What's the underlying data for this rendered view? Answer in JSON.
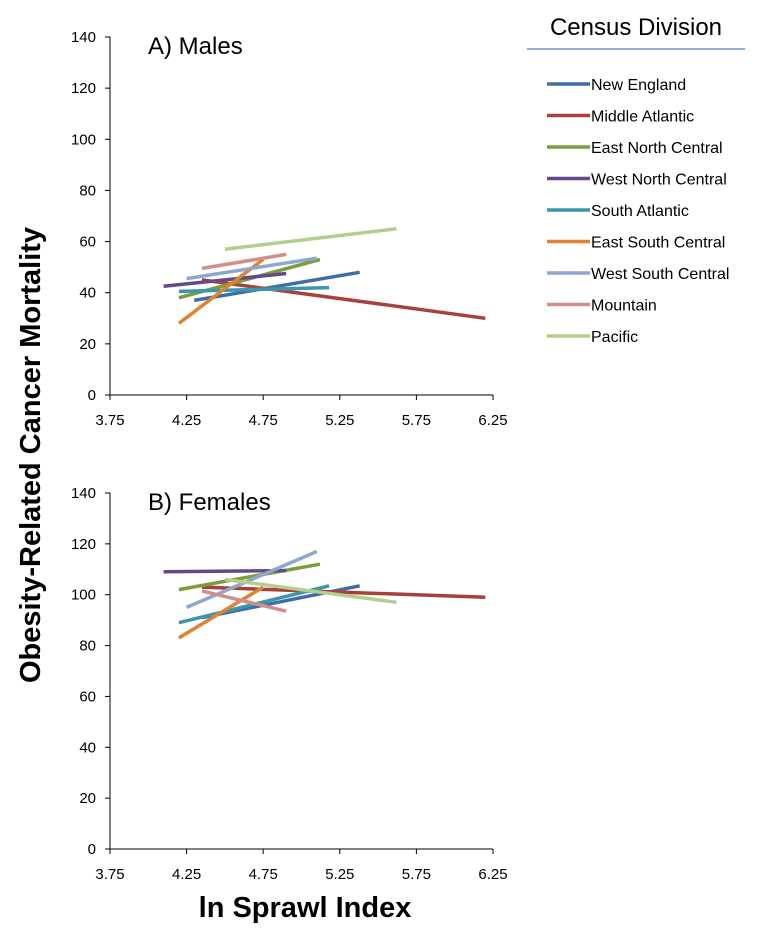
{
  "colors": {
    "New England": "#3f6ea4",
    "Middle Atlantic": "#a9403c",
    "East North Central": "#7a9e3d",
    "West North Central": "#644a8a",
    "South Atlantic": "#3a97ad",
    "East South Central": "#e0822f",
    "West South Central": "#8ea7d0",
    "Mountain": "#d38d8a",
    "Pacific": "#b3cf8c"
  },
  "chart_data": [
    {
      "type": "line",
      "title": "A) Males",
      "xlabel": "",
      "ylabel": "",
      "xlim": [
        3.75,
        6.25
      ],
      "ylim": [
        0,
        140
      ],
      "x_ticks": [
        "3.75",
        "4.25",
        "4.75",
        "5.25",
        "5.75",
        "6.25"
      ],
      "y_ticks": [
        "0",
        "20",
        "40",
        "60",
        "80",
        "100",
        "120",
        "140"
      ],
      "grid": false,
      "series": [
        {
          "name": "New England",
          "x": [
            4.3,
            5.38
          ],
          "values": [
            37,
            48
          ]
        },
        {
          "name": "Middle Atlantic",
          "x": [
            4.35,
            6.2
          ],
          "values": [
            45,
            30
          ]
        },
        {
          "name": "East North Central",
          "x": [
            4.2,
            5.12
          ],
          "values": [
            38,
            53
          ]
        },
        {
          "name": "West North Central",
          "x": [
            4.1,
            4.9
          ],
          "values": [
            42.5,
            47.5
          ]
        },
        {
          "name": "South Atlantic",
          "x": [
            4.2,
            5.18
          ],
          "values": [
            40.5,
            42
          ]
        },
        {
          "name": "East South Central",
          "x": [
            4.2,
            4.75
          ],
          "values": [
            28,
            53
          ]
        },
        {
          "name": "West South Central",
          "x": [
            4.25,
            5.1
          ],
          "values": [
            45.5,
            53.5
          ]
        },
        {
          "name": "Mountain",
          "x": [
            4.35,
            4.9
          ],
          "values": [
            49.5,
            55
          ]
        },
        {
          "name": "Pacific",
          "x": [
            4.5,
            5.62
          ],
          "values": [
            57,
            65
          ]
        }
      ]
    },
    {
      "type": "line",
      "title": "B) Females",
      "xlabel": "",
      "ylabel": "",
      "xlim": [
        3.75,
        6.25
      ],
      "ylim": [
        0,
        140
      ],
      "x_ticks": [
        "3.75",
        "4.25",
        "4.75",
        "5.25",
        "5.75",
        "6.25"
      ],
      "y_ticks": [
        "0",
        "20",
        "40",
        "60",
        "80",
        "100",
        "120",
        "140"
      ],
      "grid": false,
      "series": [
        {
          "name": "New England",
          "x": [
            4.35,
            5.38
          ],
          "values": [
            91,
            103.5
          ]
        },
        {
          "name": "Middle Atlantic",
          "x": [
            4.35,
            6.2
          ],
          "values": [
            103,
            99
          ]
        },
        {
          "name": "East North Central",
          "x": [
            4.2,
            5.12
          ],
          "values": [
            102,
            112
          ]
        },
        {
          "name": "West North Central",
          "x": [
            4.1,
            4.9
          ],
          "values": [
            109,
            109.5
          ]
        },
        {
          "name": "South Atlantic",
          "x": [
            4.2,
            5.18
          ],
          "values": [
            89,
            103.5
          ]
        },
        {
          "name": "East South Central",
          "x": [
            4.2,
            4.75
          ],
          "values": [
            83,
            103
          ]
        },
        {
          "name": "West South Central",
          "x": [
            4.25,
            5.1
          ],
          "values": [
            95,
            117
          ]
        },
        {
          "name": "Mountain",
          "x": [
            4.35,
            4.9
          ],
          "values": [
            101.5,
            93.5
          ]
        },
        {
          "name": "Pacific",
          "x": [
            4.5,
            5.62
          ],
          "values": [
            106,
            97
          ]
        }
      ]
    }
  ],
  "shared": {
    "y_axis_title": "Obesity-Related Cancer Mortality",
    "x_axis_title": "ln Sprawl Index"
  },
  "legend": {
    "title": "Census Division",
    "items": [
      "New England",
      "Middle Atlantic",
      "East North Central",
      "West North Central",
      "South Atlantic",
      "East South Central",
      "West South Central",
      "Mountain",
      "Pacific"
    ]
  }
}
